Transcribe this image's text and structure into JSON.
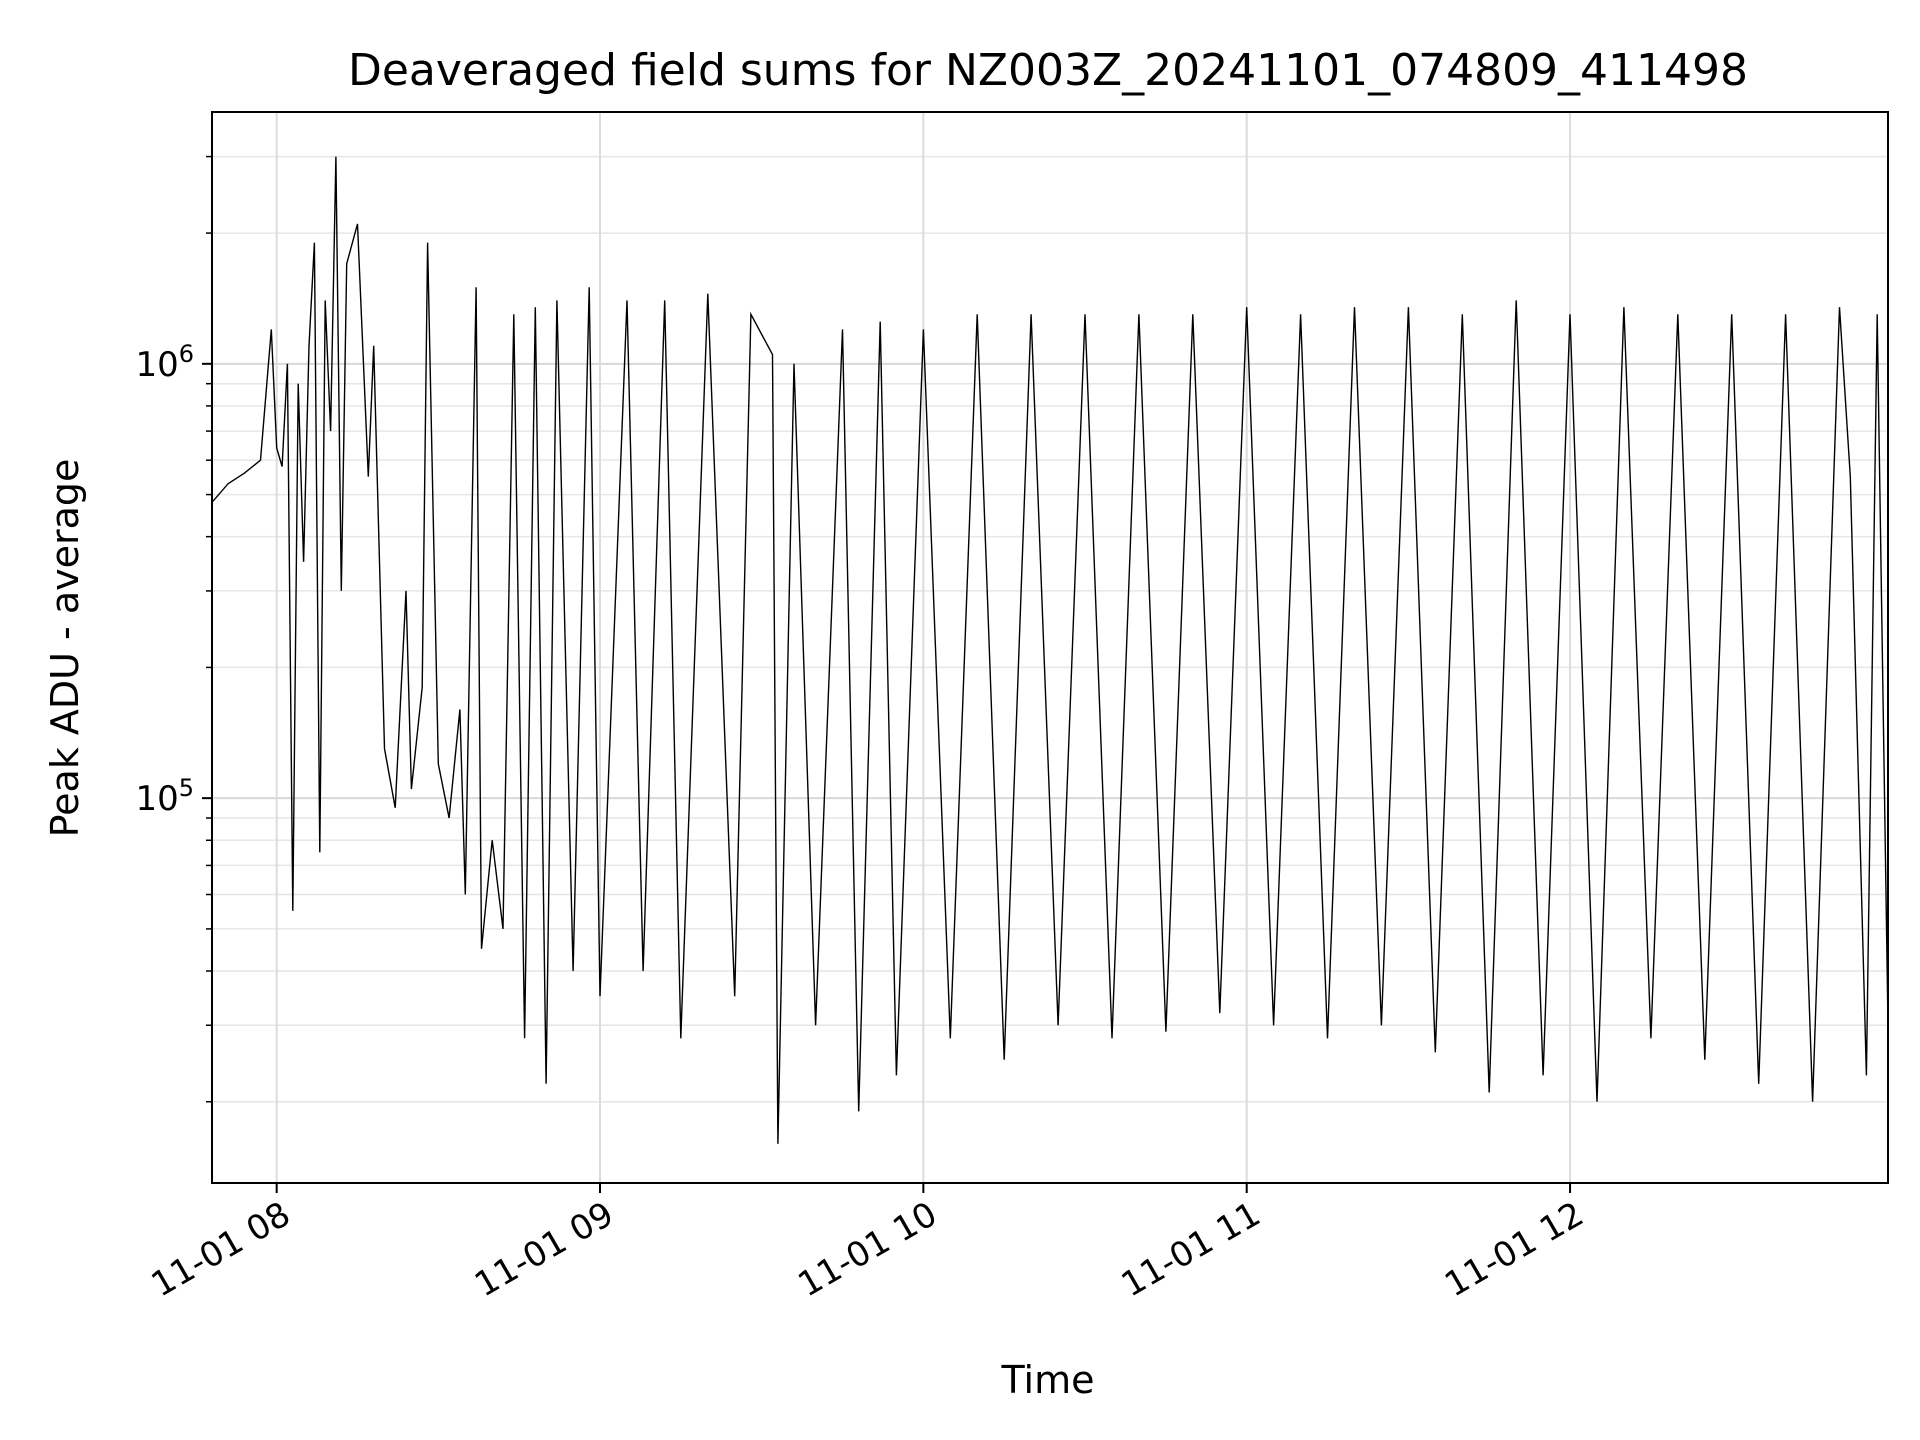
{
  "chart_data": {
    "type": "line",
    "title": "Deaveraged field sums for NZ003Z_20241101_074809_411498",
    "xlabel": "Time",
    "ylabel": "Peak ADU - average",
    "yscale": "log",
    "grid": true,
    "line_color": "#000000",
    "xlim": [
      "2024-11-01 07:48",
      "2024-11-01 12:59"
    ],
    "ylim": [
      13000,
      3800000
    ],
    "x_ticks": [
      {
        "value": "2024-11-01 08:00",
        "label": "11-01 08"
      },
      {
        "value": "2024-11-01 09:00",
        "label": "11-01 09"
      },
      {
        "value": "2024-11-01 10:00",
        "label": "11-01 10"
      },
      {
        "value": "2024-11-01 11:00",
        "label": "11-01 11"
      },
      {
        "value": "2024-11-01 12:00",
        "label": "11-01 12"
      }
    ],
    "y_ticks": [
      {
        "value": 100000,
        "base": "10",
        "exp": "5"
      },
      {
        "value": 1000000,
        "base": "10",
        "exp": "6"
      }
    ],
    "series": [
      {
        "points": [
          [
            "07:48",
            480000
          ],
          [
            "07:51",
            530000
          ],
          [
            "07:54",
            560000
          ],
          [
            "07:57",
            600000
          ],
          [
            "07:59",
            1200000
          ],
          [
            "08:00",
            640000
          ],
          [
            "08:01",
            580000
          ],
          [
            "08:02",
            1000000
          ],
          [
            "08:03",
            55000
          ],
          [
            "08:04",
            900000
          ],
          [
            "08:05",
            350000
          ],
          [
            "08:06",
            1100000
          ],
          [
            "08:07",
            1900000
          ],
          [
            "08:08",
            75000
          ],
          [
            "08:09",
            1400000
          ],
          [
            "08:10",
            700000
          ],
          [
            "08:11",
            3000000
          ],
          [
            "08:12",
            300000
          ],
          [
            "08:13",
            1700000
          ],
          [
            "08:15",
            2100000
          ],
          [
            "08:17",
            550000
          ],
          [
            "08:18",
            1100000
          ],
          [
            "08:20",
            130000
          ],
          [
            "08:22",
            95000
          ],
          [
            "08:24",
            300000
          ],
          [
            "08:25",
            105000
          ],
          [
            "08:27",
            180000
          ],
          [
            "08:28",
            1900000
          ],
          [
            "08:30",
            120000
          ],
          [
            "08:32",
            90000
          ],
          [
            "08:34",
            160000
          ],
          [
            "08:35",
            60000
          ],
          [
            "08:37",
            1500000
          ],
          [
            "08:38",
            45000
          ],
          [
            "08:40",
            80000
          ],
          [
            "08:42",
            50000
          ],
          [
            "08:44",
            1300000
          ],
          [
            "08:46",
            28000
          ],
          [
            "08:48",
            1350000
          ],
          [
            "08:50",
            22000
          ],
          [
            "08:52",
            1400000
          ],
          [
            "08:55",
            40000
          ],
          [
            "08:58",
            1500000
          ],
          [
            "09:00",
            35000
          ],
          [
            "09:05",
            1400000
          ],
          [
            "09:08",
            40000
          ],
          [
            "09:12",
            1400000
          ],
          [
            "09:15",
            28000
          ],
          [
            "09:20",
            1450000
          ],
          [
            "09:25",
            35000
          ],
          [
            "09:28",
            1300000
          ],
          [
            "09:32",
            1050000
          ],
          [
            "09:33",
            16000
          ],
          [
            "09:36",
            1000000
          ],
          [
            "09:40",
            30000
          ],
          [
            "09:45",
            1200000
          ],
          [
            "09:48",
            19000
          ],
          [
            "09:52",
            1250000
          ],
          [
            "09:55",
            23000
          ],
          [
            "10:00",
            1200000
          ],
          [
            "10:05",
            28000
          ],
          [
            "10:10",
            1300000
          ],
          [
            "10:15",
            25000
          ],
          [
            "10:20",
            1300000
          ],
          [
            "10:25",
            30000
          ],
          [
            "10:30",
            1300000
          ],
          [
            "10:35",
            28000
          ],
          [
            "10:40",
            1300000
          ],
          [
            "10:45",
            29000
          ],
          [
            "10:50",
            1300000
          ],
          [
            "10:55",
            32000
          ],
          [
            "11:00",
            1350000
          ],
          [
            "11:05",
            30000
          ],
          [
            "11:10",
            1300000
          ],
          [
            "11:15",
            28000
          ],
          [
            "11:20",
            1350000
          ],
          [
            "11:25",
            30000
          ],
          [
            "11:30",
            1350000
          ],
          [
            "11:35",
            26000
          ],
          [
            "11:40",
            1300000
          ],
          [
            "11:45",
            21000
          ],
          [
            "11:50",
            1400000
          ],
          [
            "11:55",
            23000
          ],
          [
            "12:00",
            1300000
          ],
          [
            "12:05",
            20000
          ],
          [
            "12:10",
            1350000
          ],
          [
            "12:15",
            28000
          ],
          [
            "12:20",
            1300000
          ],
          [
            "12:25",
            25000
          ],
          [
            "12:30",
            1300000
          ],
          [
            "12:35",
            22000
          ],
          [
            "12:40",
            1300000
          ],
          [
            "12:45",
            20000
          ],
          [
            "12:50",
            1350000
          ],
          [
            "12:52",
            550000
          ],
          [
            "12:55",
            23000
          ],
          [
            "12:57",
            1300000
          ],
          [
            "12:59",
            30000
          ]
        ]
      }
    ]
  }
}
